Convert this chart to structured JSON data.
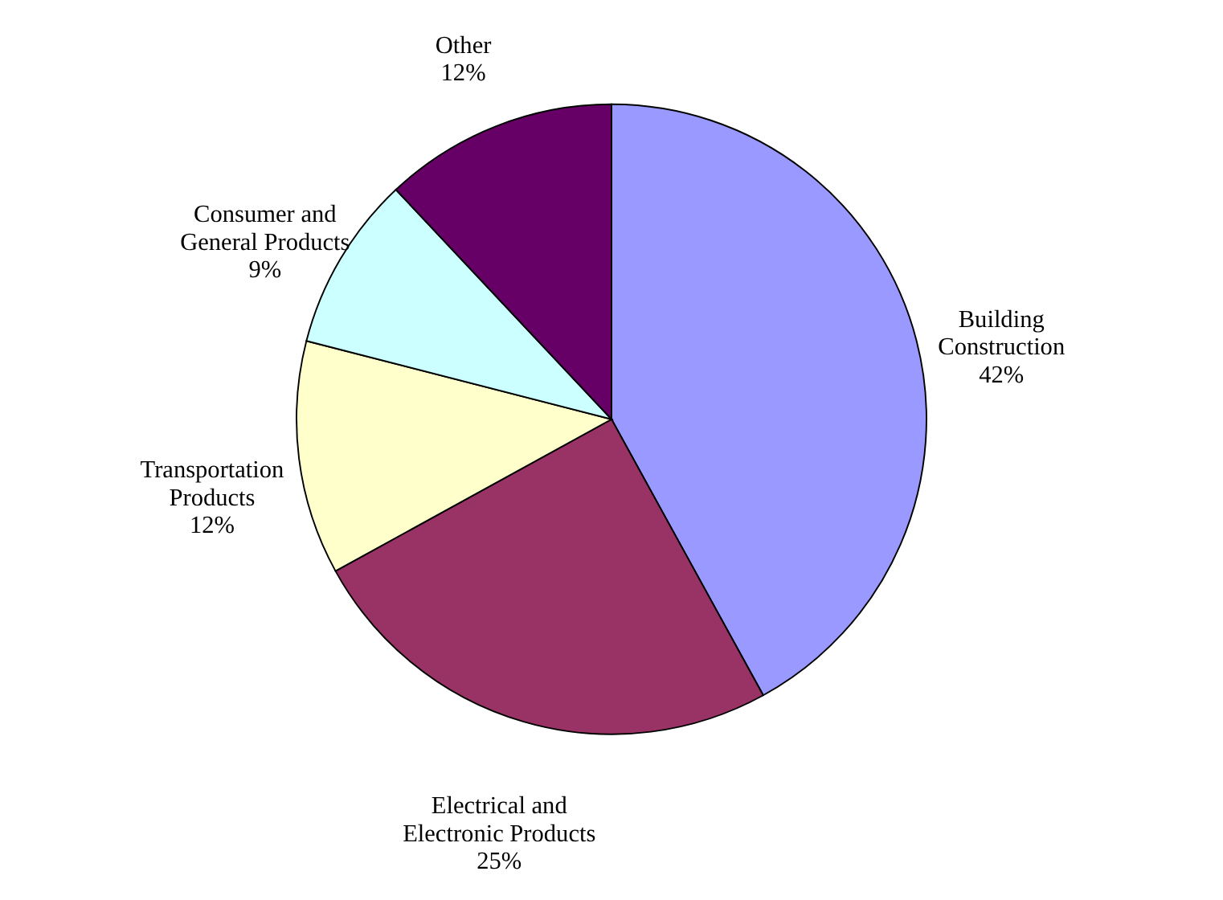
{
  "chart_data": {
    "type": "pie",
    "categories": [
      "Building\nConstruction",
      "Electrical and\nElectronic Products",
      "Transportation\nProducts",
      "Consumer and\nGeneral Products",
      "Other"
    ],
    "values": [
      42,
      25,
      12,
      9,
      12
    ],
    "value_labels": [
      "42%",
      "25%",
      "12%",
      "9%",
      "12%"
    ],
    "colors": [
      "#9999ff",
      "#993366",
      "#ffffcc",
      "#ccffff",
      "#660066"
    ]
  }
}
